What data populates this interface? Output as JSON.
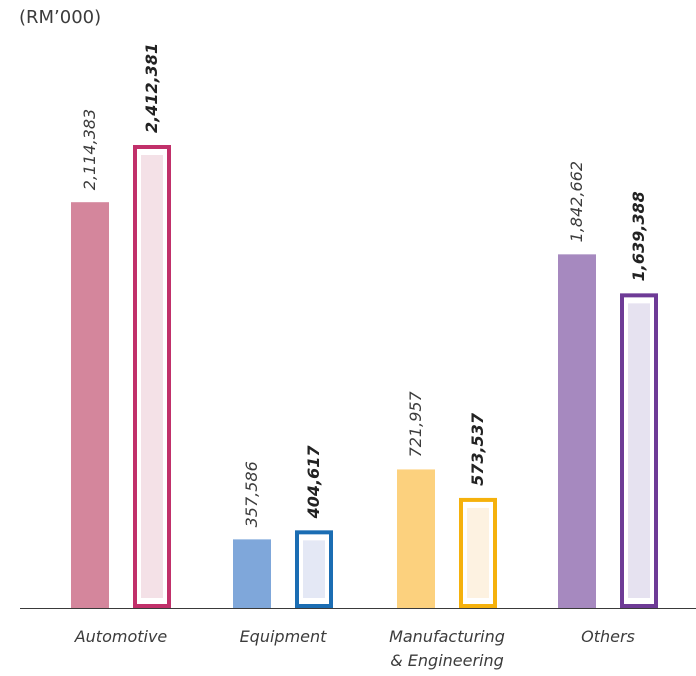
{
  "chart_data": {
    "type": "bar",
    "unit_label": "(RM’000)",
    "categories": [
      {
        "lines": [
          "Automotive"
        ]
      },
      {
        "lines": [
          "Equipment"
        ]
      },
      {
        "lines": [
          "Manufacturing",
          "& Engineering"
        ]
      },
      {
        "lines": [
          "Others"
        ]
      }
    ],
    "series": [
      {
        "values": [
          2114383,
          357586,
          721957,
          1842662
        ],
        "labels": [
          "2,114,383",
          "357,586",
          "721,957",
          "1,842,662"
        ],
        "style": "solid"
      },
      {
        "values": [
          2412381,
          404617,
          573537,
          1639388
        ],
        "labels": [
          "2,412,381",
          "404,617",
          "573,537",
          "1,639,388"
        ],
        "style": "outlined-bold"
      }
    ],
    "colors": {
      "solid": [
        "#d4869c",
        "#7fa7da",
        "#fcd17e",
        "#a689bf"
      ],
      "outline": [
        "#c1306a",
        "#1b6db3",
        "#f5b10c",
        "#6e3b96"
      ],
      "fill": [
        "#f4e1e7",
        "#e4e8f5",
        "#fdf2e1",
        "#e6e2f0"
      ]
    },
    "ylim": [
      0,
      2500000
    ],
    "grid": false,
    "legend": "none"
  }
}
